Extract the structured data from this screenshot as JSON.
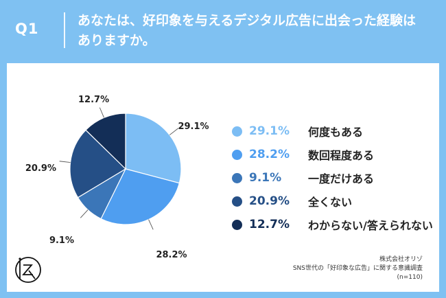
{
  "header": {
    "question_label": "Q1",
    "title_line1": "あなたは、好印象を与えるデジタル広告に出会った経験は",
    "title_line2": "ありますか。"
  },
  "colors": {
    "background": "#7fc1f2",
    "series": [
      "#7cbdf4",
      "#4f9ef0",
      "#3b76b8",
      "#254f86",
      "#132e57"
    ]
  },
  "chart_data": {
    "type": "pie",
    "title": "",
    "categories": [
      "何度もある",
      "数回程度ある",
      "一度だけある",
      "全くない",
      "わからない/答えられない"
    ],
    "values": [
      29.1,
      28.2,
      9.1,
      20.9,
      12.7
    ],
    "value_labels": [
      "29.1%",
      "28.2%",
      "9.1%",
      "20.9%",
      "12.7%"
    ],
    "start": "12 o'clock",
    "direction": "clockwise",
    "legend": "right"
  },
  "footer": {
    "company": "株式会社オリゾ",
    "survey": "SNS世代の「好印象な広告」に関する意識調査",
    "sample": "(n=110)"
  },
  "logo": {
    "icon": "orizo-logo-icon"
  }
}
